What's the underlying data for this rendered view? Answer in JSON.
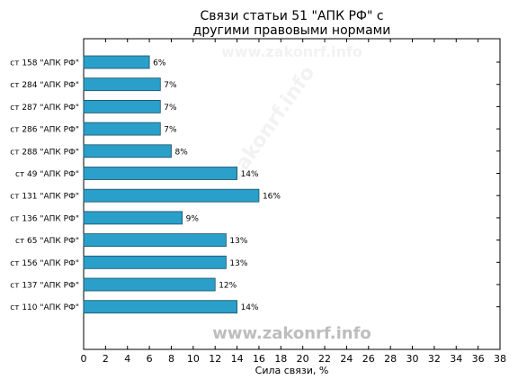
{
  "chart_data": {
    "type": "bar",
    "orientation": "horizontal",
    "title_lines": [
      "Связи статьи 51 \"АПК РФ\" с",
      "другими правовыми нормами"
    ],
    "xlabel": "Сила связи, %",
    "ylabel": "",
    "xlim": [
      0,
      38
    ],
    "xticks": [
      0,
      2,
      4,
      6,
      8,
      10,
      12,
      14,
      16,
      18,
      20,
      22,
      24,
      26,
      28,
      30,
      32,
      34,
      36,
      38
    ],
    "grid": false,
    "categories": [
      "ст 158 \"АПК РФ\"",
      "ст 284 \"АПК РФ\"",
      "ст 287 \"АПК РФ\"",
      "ст 286 \"АПК РФ\"",
      "ст 288 \"АПК РФ\"",
      "ст 49 \"АПК РФ\"",
      "ст 131 \"АПК РФ\"",
      "ст 136 \"АПК РФ\"",
      "ст 65 \"АПК РФ\"",
      "ст 156 \"АПК РФ\"",
      "ст 137 \"АПК РФ\"",
      "ст 110 \"АПК РФ\""
    ],
    "values": [
      6,
      7,
      7,
      7,
      8,
      14,
      16,
      9,
      13,
      13,
      12,
      14
    ],
    "value_labels": [
      "6%",
      "7%",
      "7%",
      "7%",
      "8%",
      "14%",
      "16%",
      "9%",
      "13%",
      "13%",
      "12%",
      "14%"
    ],
    "bar_color": "#2a9fc9",
    "bar_edge_color": "#1a4f66"
  },
  "watermark": {
    "bottom": "www.zakonrf.info",
    "top": "www.zakonrf.info",
    "diagonal": "zakonrf.info"
  }
}
